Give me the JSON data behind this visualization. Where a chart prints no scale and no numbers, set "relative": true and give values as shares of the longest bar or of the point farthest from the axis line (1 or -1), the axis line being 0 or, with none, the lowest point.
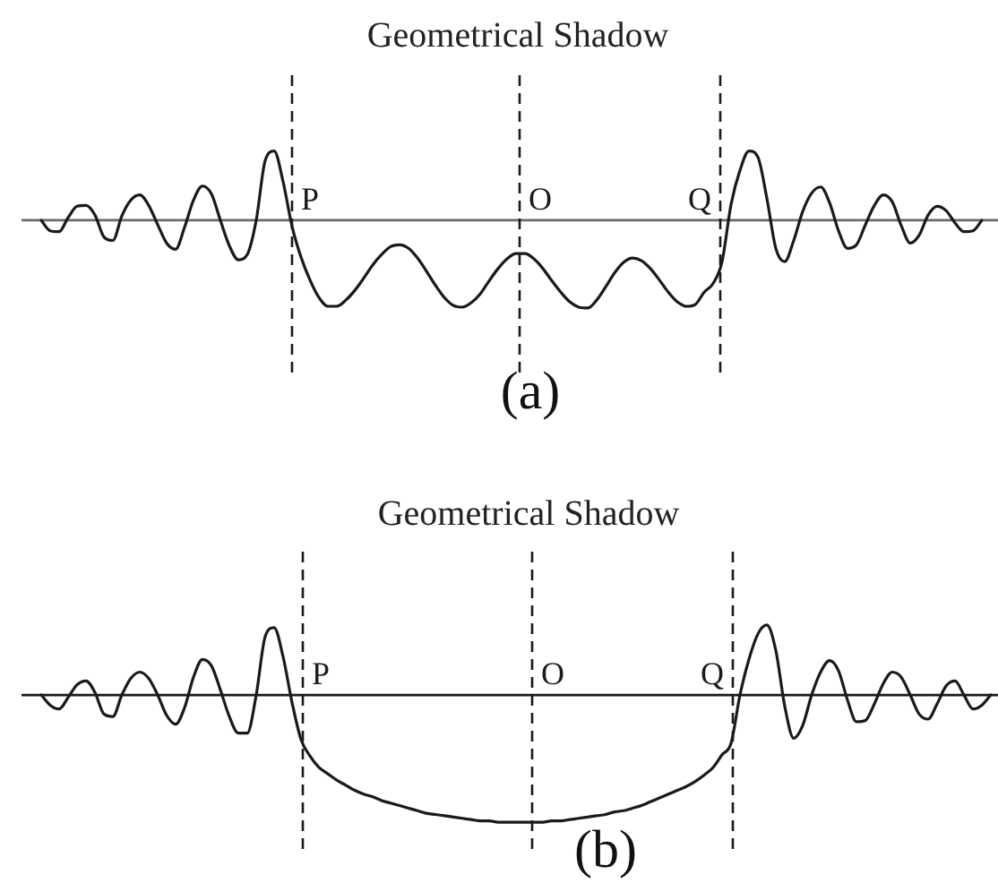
{
  "chart_data": [
    {
      "type": "line",
      "title": "Geometrical Shadow",
      "xlabel": "(a)",
      "relative": true,
      "marker": "none",
      "color": "#1a1a1a",
      "annotations": [
        "P",
        "O",
        "Q"
      ],
      "categories": [
        null,
        null,
        null,
        null,
        null,
        null,
        null,
        null,
        null,
        null,
        null,
        null,
        null,
        null,
        null,
        null,
        null,
        null,
        null,
        null,
        null,
        null,
        null,
        null,
        null,
        null,
        null,
        null,
        null,
        null,
        null,
        null,
        null,
        null,
        null,
        null,
        null,
        null,
        null,
        null,
        null,
        null,
        null,
        null,
        null,
        null,
        null,
        null,
        null,
        null,
        null,
        null,
        null,
        null,
        null,
        null,
        null,
        null,
        null,
        null,
        null,
        null,
        null,
        null,
        null,
        null,
        null,
        null,
        null,
        null,
        null,
        null,
        null,
        null,
        null,
        null,
        null,
        null,
        null,
        null,
        null,
        null,
        null,
        null,
        null,
        null,
        null,
        null,
        null,
        null,
        null,
        null,
        null,
        null,
        null,
        null,
        null,
        null,
        null,
        null,
        null,
        null,
        null,
        null,
        null,
        null
      ],
      "values": [
        0,
        -0.12,
        -0.13,
        0.03,
        0.16,
        0.17,
        0.06,
        -0.19,
        -0.23,
        0.05,
        0.23,
        0.29,
        0.17,
        -0.05,
        -0.26,
        -0.33,
        -0.08,
        0.23,
        0.39,
        0.3,
        0,
        -0.29,
        -0.45,
        -0.39,
        0,
        0.68,
        0.79,
        0.44,
        -0.07,
        -0.42,
        -0.68,
        -0.88,
        -0.98,
        -0.98,
        -0.91,
        -0.8,
        -0.66,
        -0.51,
        -0.39,
        -0.3,
        -0.28,
        -0.32,
        -0.43,
        -0.58,
        -0.74,
        -0.88,
        -0.97,
        -0.99,
        -0.94,
        -0.84,
        -0.69,
        -0.55,
        -0.44,
        -0.38,
        -0.38,
        -0.44,
        -0.55,
        -0.69,
        -0.82,
        -0.93,
        -0.99,
        -1,
        -0.91,
        -0.76,
        -0.6,
        -0.48,
        -0.43,
        -0.46,
        -0.55,
        -0.68,
        -0.82,
        -0.93,
        -0.98,
        -0.96,
        -0.82,
        -0.72,
        -0.47,
        0.18,
        0.57,
        0.79,
        0.72,
        0.25,
        -0.32,
        -0.47,
        -0.23,
        0.1,
        0.31,
        0.38,
        0.2,
        -0.12,
        -0.32,
        -0.28,
        -0.05,
        0.17,
        0.29,
        0.21,
        -0.06,
        -0.26,
        -0.17,
        0.06,
        0.16,
        0.11,
        -0.03,
        -0.13,
        -0.12,
        0
      ]
    },
    {
      "type": "line",
      "title": "Geometrical Shadow",
      "xlabel": "(b)",
      "relative": true,
      "marker": "none",
      "color": "#1a1a1a",
      "annotations": [
        "P",
        "O",
        "Q"
      ],
      "categories": [
        null,
        null,
        null,
        null,
        null,
        null,
        null,
        null,
        null,
        null,
        null,
        null,
        null,
        null,
        null,
        null,
        null,
        null,
        null,
        null,
        null,
        null,
        null,
        null,
        null,
        null,
        null,
        null,
        null,
        null,
        null,
        null,
        null,
        null,
        null,
        null,
        null,
        null,
        null,
        null,
        null,
        null,
        null,
        null,
        null,
        null,
        null,
        null,
        null,
        null,
        null,
        null,
        null,
        null,
        null,
        null,
        null,
        null,
        null,
        null,
        null,
        null,
        null,
        null,
        null,
        null,
        null,
        null,
        null,
        null,
        null,
        null,
        null,
        null,
        null,
        null,
        null,
        null,
        null,
        null,
        null,
        null,
        null,
        null,
        null,
        null,
        null,
        null,
        null,
        null,
        null,
        null,
        null,
        null,
        null,
        null,
        null,
        null,
        null,
        null,
        null,
        null,
        null,
        null,
        null,
        null,
        null
      ],
      "values": [
        0,
        -0.08,
        -0.11,
        -0.02,
        0.08,
        0.11,
        0.02,
        -0.15,
        -0.17,
        0,
        0.13,
        0.18,
        0.13,
        0,
        -0.16,
        -0.23,
        -0.1,
        0.14,
        0.28,
        0.23,
        0.04,
        -0.17,
        -0.3,
        -0.3,
        0,
        0.46,
        0.53,
        0.3,
        -0.06,
        -0.35,
        -0.48,
        -0.57,
        -0.62,
        -0.67,
        -0.71,
        -0.75,
        -0.78,
        -0.8,
        -0.83,
        -0.85,
        -0.87,
        -0.89,
        -0.91,
        -0.93,
        -0.94,
        -0.95,
        -0.96,
        -0.97,
        -0.98,
        -0.99,
        -0.99,
        -1,
        -1,
        -1,
        -1,
        -1,
        -1,
        -0.99,
        -0.99,
        -0.98,
        -0.97,
        -0.96,
        -0.95,
        -0.94,
        -0.92,
        -0.91,
        -0.89,
        -0.87,
        -0.84,
        -0.81,
        -0.78,
        -0.75,
        -0.72,
        -0.68,
        -0.63,
        -0.57,
        -0.47,
        -0.38,
        0,
        0.28,
        0.48,
        0.55,
        0.35,
        -0.09,
        -0.34,
        -0.24,
        0,
        0.18,
        0.27,
        0.19,
        -0.04,
        -0.21,
        -0.2,
        -0.07,
        0.09,
        0.18,
        0.14,
        0,
        -0.15,
        -0.19,
        -0.07,
        0.07,
        0.11,
        0,
        -0.11,
        -0.08,
        0
      ]
    }
  ]
}
